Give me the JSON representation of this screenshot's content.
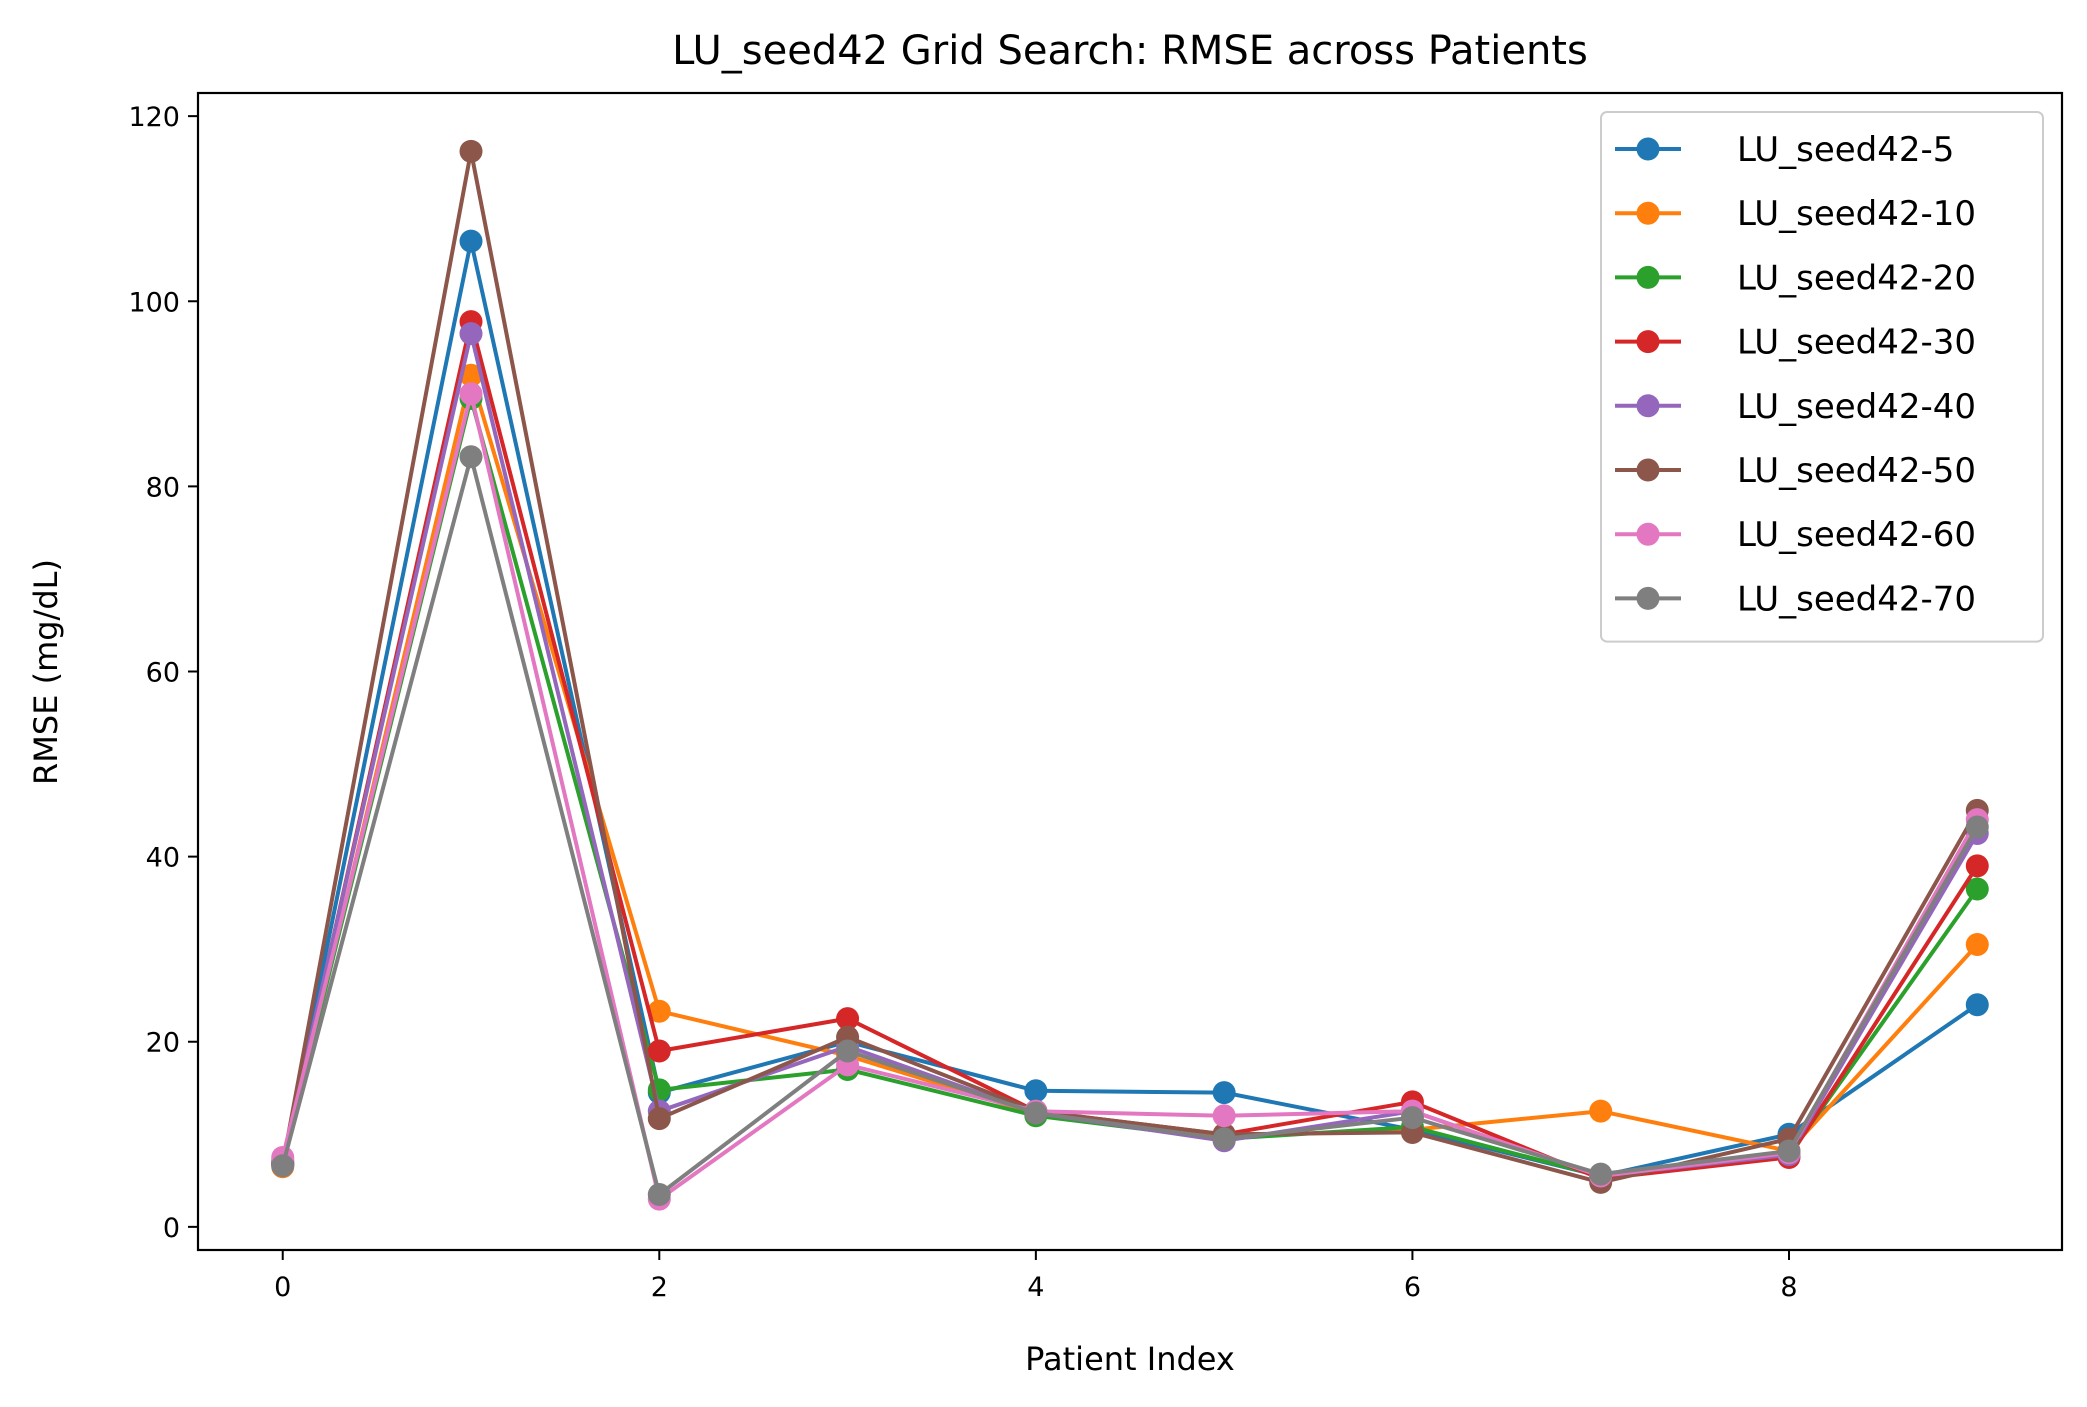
{
  "chart_data": {
    "type": "line",
    "title": "LU_seed42 Grid Search: RMSE across Patients",
    "xlabel": "Patient Index",
    "ylabel": "RMSE (mg/dL)",
    "xlim": [
      -0.45,
      9.45
    ],
    "ylim": [
      -2.5,
      122.5
    ],
    "xticks": [
      0,
      2,
      4,
      6,
      8
    ],
    "yticks": [
      0,
      20,
      40,
      60,
      80,
      100,
      120
    ],
    "grid": false,
    "legend_position": "upper right",
    "x": [
      0,
      1,
      2,
      3,
      4,
      5,
      6,
      7,
      8,
      9
    ],
    "series": [
      {
        "name": "LU_seed42-5",
        "color": "#1f77b4",
        "values": [
          6.8,
          106.5,
          14.5,
          20.0,
          14.7,
          14.5,
          10.5,
          5.5,
          10.0,
          24.0
        ]
      },
      {
        "name": "LU_seed42-10",
        "color": "#ff7f0e",
        "values": [
          6.5,
          92.0,
          23.3,
          18.5,
          12.2,
          9.8,
          10.5,
          12.5,
          8.2,
          30.5
        ]
      },
      {
        "name": "LU_seed42-20",
        "color": "#2ca02c",
        "values": [
          7.0,
          89.5,
          14.8,
          17.0,
          12.0,
          9.5,
          10.8,
          5.5,
          7.8,
          36.5
        ]
      },
      {
        "name": "LU_seed42-30",
        "color": "#d62728",
        "values": [
          6.8,
          97.8,
          19.0,
          22.5,
          12.5,
          10.0,
          13.5,
          5.2,
          7.5,
          39.0
        ]
      },
      {
        "name": "LU_seed42-40",
        "color": "#9467bd",
        "values": [
          7.2,
          96.5,
          12.5,
          19.5,
          12.3,
          9.3,
          12.5,
          5.5,
          7.8,
          42.5
        ]
      },
      {
        "name": "LU_seed42-50",
        "color": "#8c564b",
        "values": [
          6.7,
          116.2,
          11.7,
          20.5,
          12.5,
          10.0,
          10.2,
          4.8,
          9.5,
          45.0
        ]
      },
      {
        "name": "LU_seed42-60",
        "color": "#e377c2",
        "values": [
          7.5,
          90.0,
          3.0,
          17.5,
          12.5,
          12.0,
          12.5,
          5.5,
          8.0,
          44.0
        ]
      },
      {
        "name": "LU_seed42-70",
        "color": "#7f7f7f",
        "values": [
          6.6,
          83.2,
          3.5,
          19.0,
          12.3,
          9.5,
          11.8,
          5.7,
          8.2,
          43.2
        ]
      }
    ]
  }
}
